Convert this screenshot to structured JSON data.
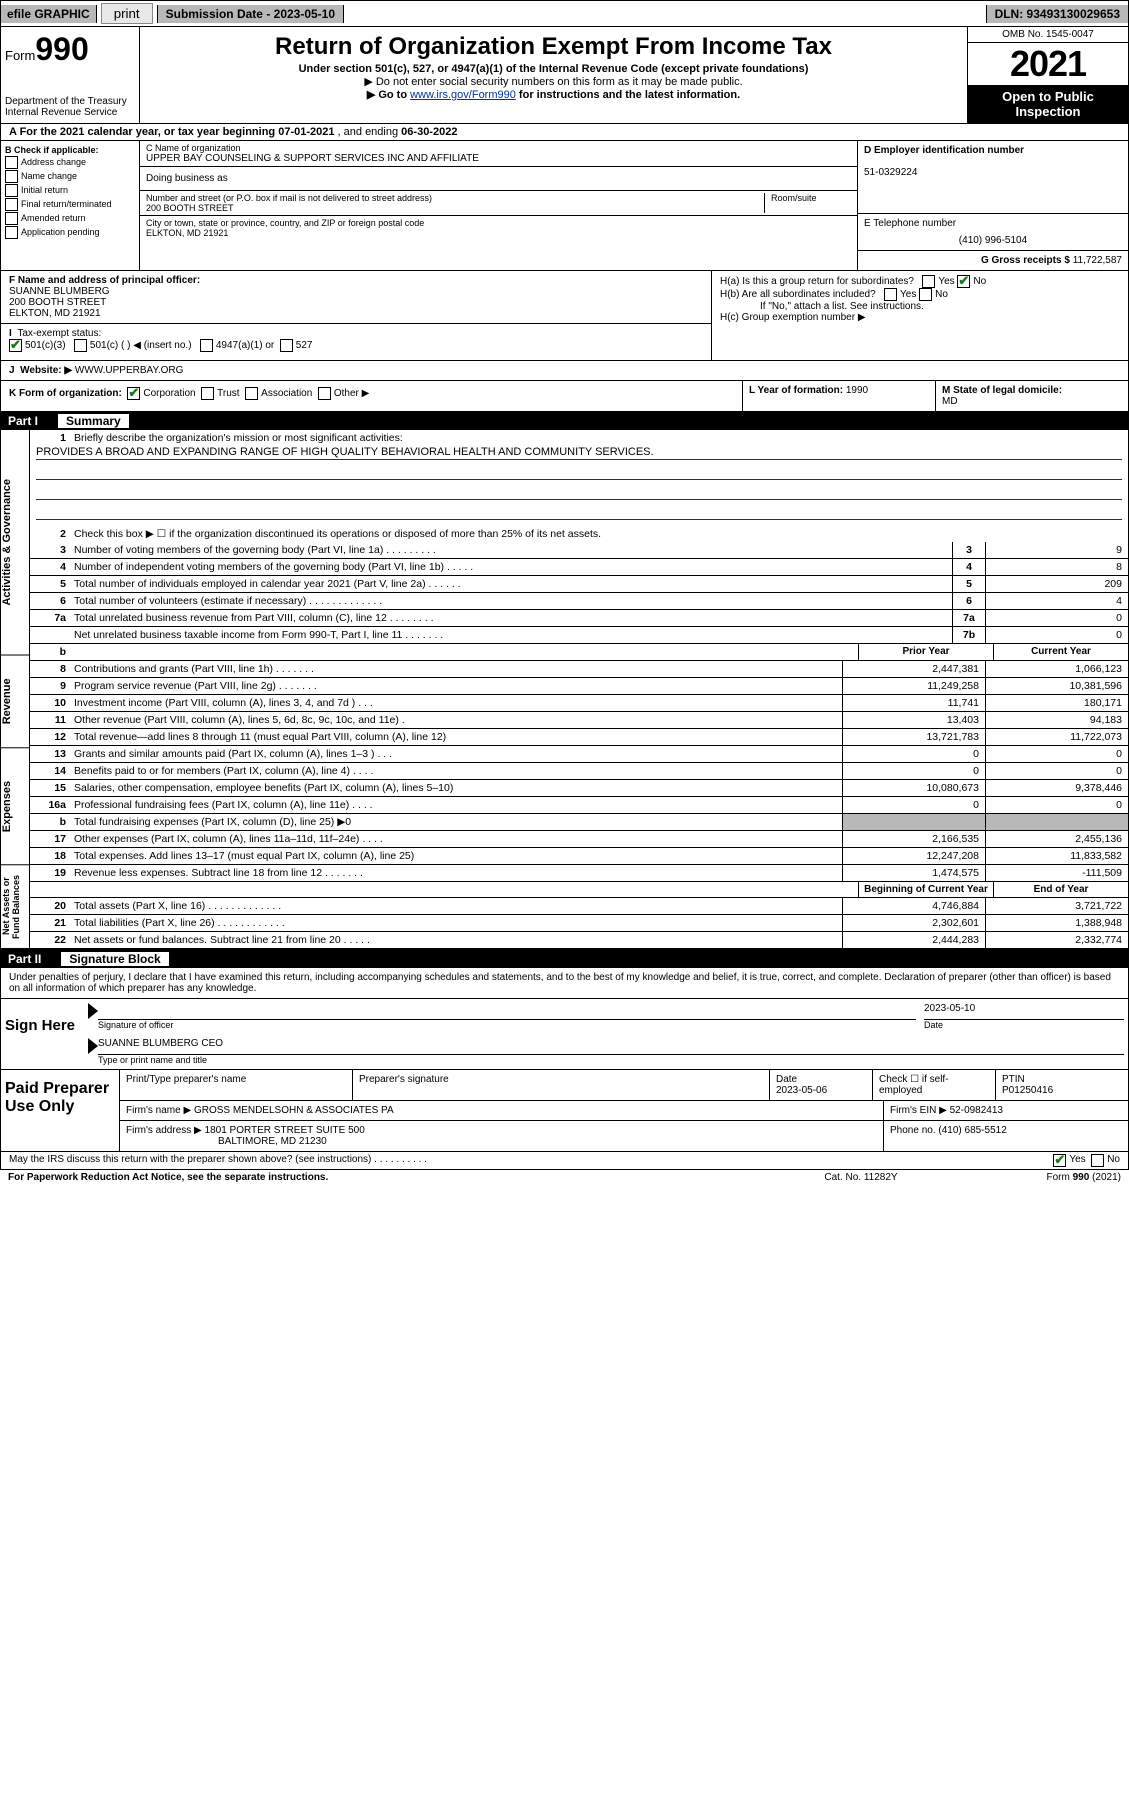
{
  "top": {
    "efile": "efile GRAPHIC",
    "print": "print",
    "submission": "Submission Date - 2023-05-10",
    "dln": "DLN: 93493130029653"
  },
  "header": {
    "formPrefix": "Form",
    "formNum": "990",
    "dept": "Department of the Treasury\nInternal Revenue Service",
    "title": "Return of Organization Exempt From Income Tax",
    "sub1": "Under section 501(c), 527, or 4947(a)(1) of the Internal Revenue Code (except private foundations)",
    "sub2a": "▶ Do not enter social security numbers on this form as it may be made public.",
    "sub2b_pre": "▶ Go to ",
    "sub2b_link": "www.irs.gov/Form990",
    "sub2b_post": " for instructions and the latest information.",
    "omb": "OMB No. 1545-0047",
    "year": "2021",
    "open": "Open to Public Inspection"
  },
  "a": {
    "label": "A For the 2021 calendar year, or tax year beginning ",
    "begin": "07-01-2021",
    "mid": " , and ending ",
    "end": "06-30-2022"
  },
  "b": {
    "header": "B Check if applicable:",
    "items": [
      "Address change",
      "Name change",
      "Initial return",
      "Final return/terminated",
      "Amended return",
      "Application pending"
    ]
  },
  "c": {
    "nameLabel": "C Name of organization",
    "name": "UPPER BAY COUNSELING & SUPPORT SERVICES INC AND AFFILIATE",
    "dbaLabel": "Doing business as",
    "streetLabel": "Number and street (or P.O. box if mail is not delivered to street address)",
    "street": "200 BOOTH STREET",
    "roomLabel": "Room/suite",
    "cityLabel": "City or town, state or province, country, and ZIP or foreign postal code",
    "city": "ELKTON, MD  21921"
  },
  "d": {
    "einLabel": "D Employer identification number",
    "ein": "51-0329224",
    "phoneLabel": "E Telephone number",
    "phone": "(410) 996-5104",
    "grossLabel": "G Gross receipts $",
    "gross": "11,722,587"
  },
  "f": {
    "label": "F Name and address of principal officer:",
    "name": "SUANNE BLUMBERG",
    "addr1": "200 BOOTH STREET",
    "addr2": "ELKTON, MD  21921"
  },
  "h": {
    "a": "H(a)  Is this a group return for subordinates?",
    "b": "H(b)  Are all subordinates included?",
    "bNote": "If \"No,\" attach a list. See instructions.",
    "c": "H(c)  Group exemption number ▶"
  },
  "i": {
    "label": "Tax-exempt status:",
    "opts": [
      "501(c)(3)",
      "501(c) (  ) ◀ (insert no.)",
      "4947(a)(1) or",
      "527"
    ]
  },
  "j": {
    "label": "Website: ▶",
    "val": "WWW.UPPERBAY.ORG"
  },
  "k": {
    "label": "K Form of organization:",
    "opts": [
      "Corporation",
      "Trust",
      "Association",
      "Other ▶"
    ],
    "l_label": "L Year of formation:",
    "l_val": "1990",
    "m_label": "M State of legal domicile:",
    "m_val": "MD"
  },
  "part1": {
    "num": "Part I",
    "title": "Summary"
  },
  "summary": {
    "line1": "Briefly describe the organization's mission or most significant activities:",
    "mission": "PROVIDES A BROAD AND EXPANDING RANGE OF HIGH QUALITY BEHAVIORAL HEALTH AND COMMUNITY SERVICES.",
    "line2": "Check this box ▶ ☐  if the organization discontinued its operations or disposed of more than 25% of its net assets.",
    "lines_boxed": [
      {
        "n": "3",
        "label": "Number of voting members of the governing body (Part VI, line 1a)   .    .    .    .    .    .    .    .    .",
        "box": "3",
        "val": "9"
      },
      {
        "n": "4",
        "label": "Number of independent voting members of the governing body (Part VI, line 1b)    .    .    .    .    .",
        "box": "4",
        "val": "8"
      },
      {
        "n": "5",
        "label": "Total number of individuals employed in calendar year 2021 (Part V, line 2a)    .    .    .    .    .    .",
        "box": "5",
        "val": "209"
      },
      {
        "n": "6",
        "label": "Total number of volunteers (estimate if necessary)    .    .    .    .    .    .    .    .    .    .    .    .    .",
        "box": "6",
        "val": "4"
      },
      {
        "n": "7a",
        "label": "Total unrelated business revenue from Part VIII, column (C), line 12    .    .    .    .    .    .    .    .",
        "box": "7a",
        "val": "0"
      },
      {
        "n": "",
        "label": "Net unrelated business taxable income from Form 990-T, Part I, line 11    .    .    .    .    .    .    .",
        "box": "7b",
        "val": "0"
      }
    ],
    "col_prior": "Prior Year",
    "col_curr": "Current Year",
    "revenue": [
      {
        "n": "8",
        "label": "Contributions and grants (Part VIII, line 1h)    .    .    .    .    .    .    .",
        "p": "2,447,381",
        "c": "1,066,123"
      },
      {
        "n": "9",
        "label": "Program service revenue (Part VIII, line 2g)    .    .    .    .    .    .    .",
        "p": "11,249,258",
        "c": "10,381,596"
      },
      {
        "n": "10",
        "label": "Investment income (Part VIII, column (A), lines 3, 4, and 7d )    .    .    .",
        "p": "11,741",
        "c": "180,171"
      },
      {
        "n": "11",
        "label": "Other revenue (Part VIII, column (A), lines 5, 6d, 8c, 9c, 10c, and 11e)   .",
        "p": "13,403",
        "c": "94,183"
      },
      {
        "n": "12",
        "label": "Total revenue—add lines 8 through 11 (must equal Part VIII, column (A), line 12)",
        "p": "13,721,783",
        "c": "11,722,073"
      }
    ],
    "expenses": [
      {
        "n": "13",
        "label": "Grants and similar amounts paid (Part IX, column (A), lines 1–3 )    .    .    .",
        "p": "0",
        "c": "0"
      },
      {
        "n": "14",
        "label": "Benefits paid to or for members (Part IX, column (A), line 4)    .    .    .    .",
        "p": "0",
        "c": "0"
      },
      {
        "n": "15",
        "label": "Salaries, other compensation, employee benefits (Part IX, column (A), lines 5–10)",
        "p": "10,080,673",
        "c": "9,378,446"
      },
      {
        "n": "16a",
        "label": "Professional fundraising fees (Part IX, column (A), line 11e)    .    .    .    .",
        "p": "0",
        "c": "0"
      },
      {
        "n": "b",
        "label": "Total fundraising expenses (Part IX, column (D), line 25) ▶0",
        "p": "",
        "c": "",
        "shade": true
      },
      {
        "n": "17",
        "label": "Other expenses (Part IX, column (A), lines 11a–11d, 11f–24e)    .    .    .    .",
        "p": "2,166,535",
        "c": "2,455,136"
      },
      {
        "n": "18",
        "label": "Total expenses. Add lines 13–17 (must equal Part IX, column (A), line 25)",
        "p": "12,247,208",
        "c": "11,833,582"
      },
      {
        "n": "19",
        "label": "Revenue less expenses. Subtract line 18 from line 12    .    .    .    .    .    .    .",
        "p": "1,474,575",
        "c": "-111,509"
      }
    ],
    "col_begin": "Beginning of Current Year",
    "col_end": "End of Year",
    "netassets": [
      {
        "n": "20",
        "label": "Total assets (Part X, line 16)    .    .    .    .    .    .    .    .    .    .    .    .    .",
        "p": "4,746,884",
        "c": "3,721,722"
      },
      {
        "n": "21",
        "label": "Total liabilities (Part X, line 26)    .    .    .    .    .    .    .    .    .    .    .    .",
        "p": "2,302,601",
        "c": "1,388,948"
      },
      {
        "n": "22",
        "label": "Net assets or fund balances. Subtract line 21 from line 20    .    .    .    .    .",
        "p": "2,444,283",
        "c": "2,332,774"
      }
    ]
  },
  "part2": {
    "num": "Part II",
    "title": "Signature Block"
  },
  "sig": {
    "text": "Under penalties of perjury, I declare that I have examined this return, including accompanying schedules and statements, and to the best of my knowledge and belief, it is true, correct, and complete. Declaration of preparer (other than officer) is based on all information of which preparer has any knowledge.",
    "signHere": "Sign Here",
    "sigOfficer": "Signature of officer",
    "sigDate": "2023-05-10",
    "dateLabel": "Date",
    "officerName": "SUANNE BLUMBERG  CEO",
    "officerLabel": "Type or print name and title"
  },
  "paid": {
    "title": "Paid Preparer Use Only",
    "h_name": "Print/Type preparer's name",
    "h_sig": "Preparer's signature",
    "h_date": "Date",
    "date": "2023-05-06",
    "h_check": "Check ☐ if self-employed",
    "h_ptin": "PTIN",
    "ptin": "P01250416",
    "firmNameLabel": "Firm's name    ▶",
    "firmName": "GROSS MENDELSOHN & ASSOCIATES PA",
    "firmEinLabel": "Firm's EIN ▶",
    "firmEin": "52-0982413",
    "firmAddrLabel": "Firm's address ▶",
    "firmAddr1": "1801 PORTER STREET SUITE 500",
    "firmAddr2": "BALTIMORE, MD  21230",
    "phoneLabel": "Phone no.",
    "phone": "(410) 685-5512"
  },
  "footer": {
    "discuss": "May the IRS discuss this return with the preparer shown above? (see instructions)    .    .    .    .    .    .    .    .    .    .",
    "pra": "For Paperwork Reduction Act Notice, see the separate instructions.",
    "cat": "Cat. No. 11282Y",
    "form": "Form 990 (2021)"
  }
}
